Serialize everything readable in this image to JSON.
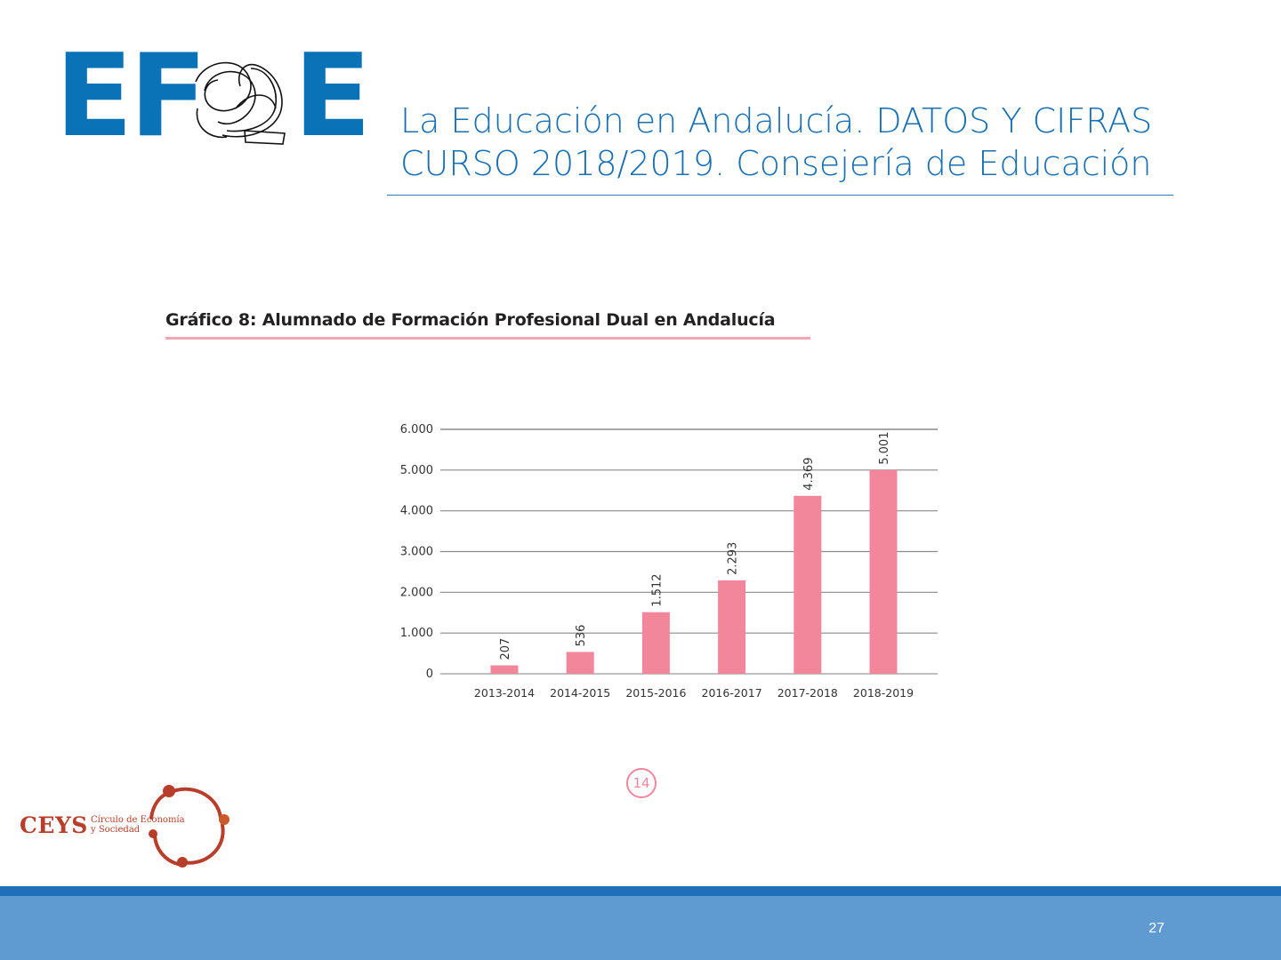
{
  "logo": {
    "letters_left": "EF",
    "letters_right": "E",
    "brand_color": "#0a72b6"
  },
  "header": {
    "title_line1": "La Educación en Andalucía. DATOS Y CIFRAS",
    "title_line2": "CURSO 2018/2019. Consejería de Educación"
  },
  "figure": {
    "caption": "Gráfico 8: Alumnado de Formación Profesional Dual en Andalucía"
  },
  "chart_data": {
    "type": "bar",
    "categories": [
      "2013-2014",
      "2014-2015",
      "2015-2016",
      "2016-2017",
      "2017-2018",
      "2018-2019"
    ],
    "values": [
      207,
      536,
      1512,
      2293,
      4369,
      5001
    ],
    "value_labels": [
      "207",
      "536",
      "1.512",
      "2.293",
      "4.369",
      "5.001"
    ],
    "y_ticks": [
      0,
      1000,
      2000,
      3000,
      4000,
      5000,
      6000
    ],
    "y_tick_labels": [
      "0",
      "1.000",
      "2.000",
      "3.000",
      "4.000",
      "5.000",
      "6.000"
    ],
    "ylim": [
      0,
      6000
    ],
    "bar_color": "#f2879c",
    "grid": true,
    "title": "",
    "xlabel": "",
    "ylabel": ""
  },
  "page_marker": "14",
  "ceys": {
    "name": "CEYS",
    "subtitle_line1": "Círculo de Economía",
    "subtitle_line2": "y Sociedad"
  },
  "slide_number": "27"
}
